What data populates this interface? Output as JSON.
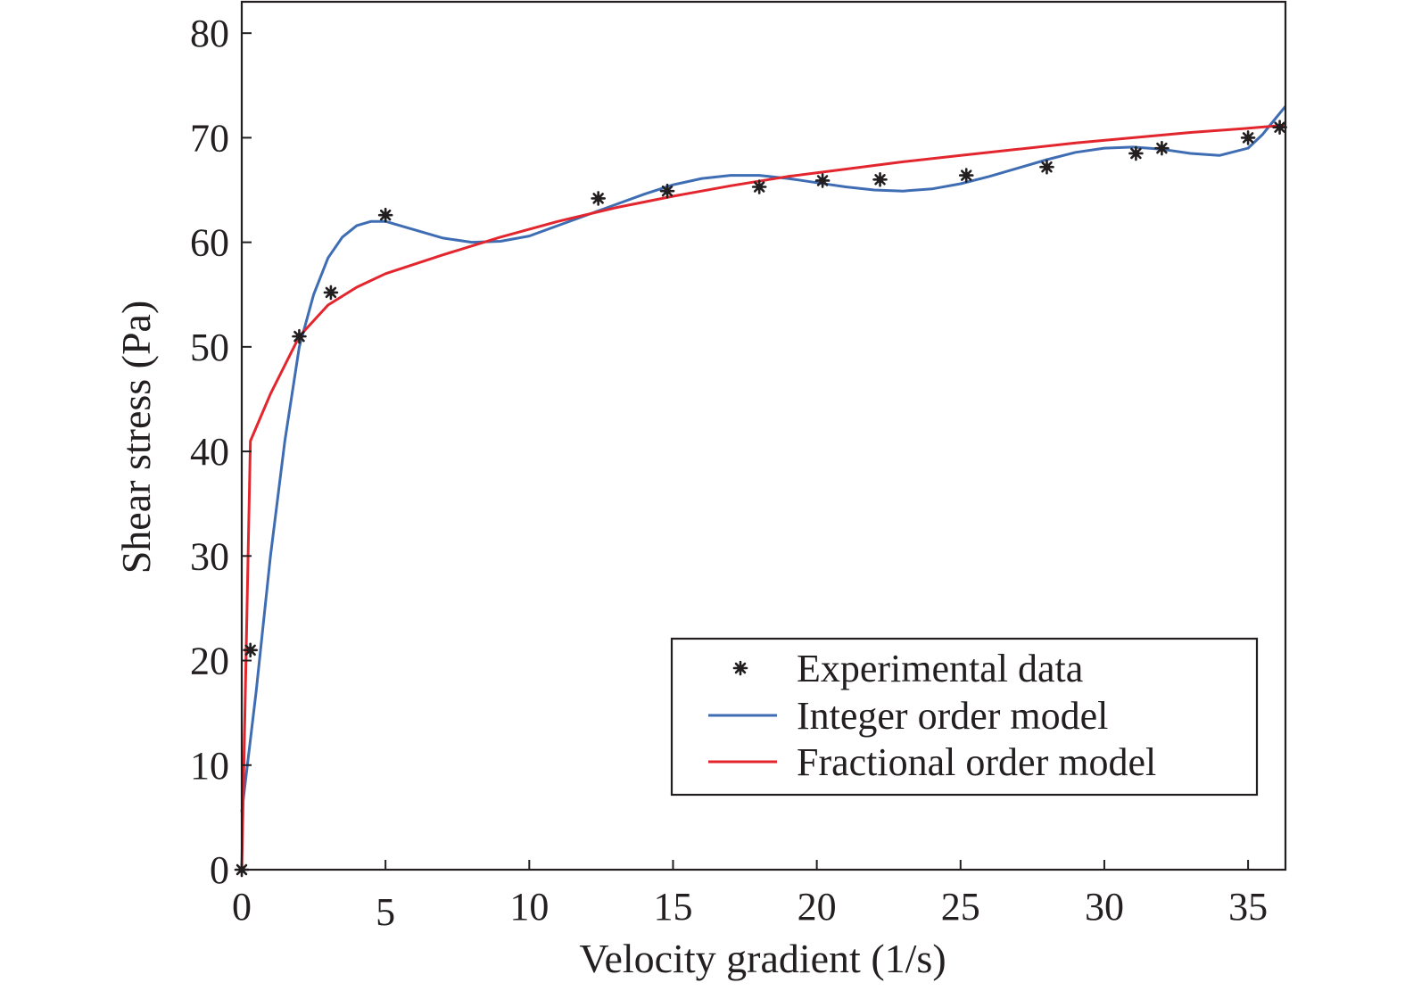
{
  "chart_data": {
    "type": "line",
    "title": "",
    "xlabel": "Velocity gradient (1/s)",
    "ylabel": "Shear stress (Pa)",
    "xlim": [
      0,
      36.3
    ],
    "ylim": [
      0,
      83
    ],
    "xticks": [
      0,
      5,
      10,
      15,
      20,
      25,
      30,
      35
    ],
    "yticks": [
      0,
      10,
      20,
      30,
      40,
      50,
      60,
      70,
      80
    ],
    "xtick_labels": [
      "0",
      "5",
      "10",
      "15",
      "20",
      "25",
      "30",
      "35"
    ],
    "ytick_labels": [
      "0",
      "10",
      "20",
      "30",
      "40",
      "50",
      "60",
      "70",
      "80"
    ],
    "grid": false,
    "legend_position": "bottom-right",
    "legend": [
      "Experimental data",
      "Integer order model",
      "Fractional order model"
    ],
    "series": [
      {
        "name": "Experimental data",
        "kind": "scatter",
        "color": "#231f20",
        "points": [
          [
            0,
            0
          ],
          [
            0.3,
            21
          ],
          [
            2.0,
            51
          ],
          [
            3.1,
            55.2
          ],
          [
            5.0,
            62.6
          ],
          [
            12.4,
            64.2
          ],
          [
            14.8,
            64.9
          ],
          [
            18.0,
            65.3
          ],
          [
            20.2,
            65.9
          ],
          [
            22.2,
            66.0
          ],
          [
            25.2,
            66.4
          ],
          [
            28.0,
            67.2
          ],
          [
            31.1,
            68.5
          ],
          [
            32.0,
            69.0
          ],
          [
            35.0,
            70.0
          ],
          [
            36.1,
            71.0
          ]
        ]
      },
      {
        "name": "Integer order model",
        "kind": "line",
        "color": "#3f6db3",
        "points": [
          [
            0,
            5.5
          ],
          [
            0.5,
            17
          ],
          [
            1.0,
            30
          ],
          [
            1.5,
            41
          ],
          [
            2.0,
            50
          ],
          [
            2.5,
            55
          ],
          [
            3.0,
            58.5
          ],
          [
            3.5,
            60.5
          ],
          [
            4.0,
            61.6
          ],
          [
            4.5,
            62.0
          ],
          [
            5.0,
            62.0
          ],
          [
            6.0,
            61.2
          ],
          [
            7.0,
            60.4
          ],
          [
            8.0,
            60.0
          ],
          [
            9.0,
            60.1
          ],
          [
            10.0,
            60.6
          ],
          [
            11.0,
            61.6
          ],
          [
            12.0,
            62.6
          ],
          [
            13.0,
            63.6
          ],
          [
            14.0,
            64.6
          ],
          [
            15.0,
            65.5
          ],
          [
            16.0,
            66.1
          ],
          [
            17.0,
            66.4
          ],
          [
            18.0,
            66.4
          ],
          [
            19.0,
            66.1
          ],
          [
            20.0,
            65.7
          ],
          [
            21.0,
            65.3
          ],
          [
            22.0,
            65.0
          ],
          [
            23.0,
            64.9
          ],
          [
            24.0,
            65.1
          ],
          [
            25.0,
            65.6
          ],
          [
            26.0,
            66.3
          ],
          [
            27.0,
            67.1
          ],
          [
            28.0,
            67.9
          ],
          [
            29.0,
            68.6
          ],
          [
            30.0,
            69.0
          ],
          [
            31.0,
            69.1
          ],
          [
            32.0,
            68.9
          ],
          [
            33.0,
            68.5
          ],
          [
            34.0,
            68.3
          ],
          [
            35.0,
            69.0
          ],
          [
            35.5,
            70.3
          ],
          [
            36.0,
            72.0
          ],
          [
            36.3,
            73.0
          ]
        ]
      },
      {
        "name": "Fractional order model",
        "kind": "line",
        "color": "#e3262e",
        "points": [
          [
            0,
            0
          ],
          [
            0.3,
            41
          ],
          [
            1.0,
            45.5
          ],
          [
            2.0,
            51
          ],
          [
            3.0,
            54
          ],
          [
            4.0,
            55.7
          ],
          [
            5.0,
            57.0
          ],
          [
            7.0,
            58.8
          ],
          [
            9.0,
            60.5
          ],
          [
            11.0,
            62.0
          ],
          [
            13.0,
            63.3
          ],
          [
            15.0,
            64.4
          ],
          [
            17.0,
            65.4
          ],
          [
            19.0,
            66.3
          ],
          [
            21.0,
            67.0
          ],
          [
            23.0,
            67.7
          ],
          [
            25.0,
            68.3
          ],
          [
            27.0,
            68.9
          ],
          [
            29.0,
            69.5
          ],
          [
            31.0,
            70.0
          ],
          [
            33.0,
            70.5
          ],
          [
            35.0,
            70.9
          ],
          [
            36.3,
            71.2
          ]
        ]
      }
    ]
  }
}
